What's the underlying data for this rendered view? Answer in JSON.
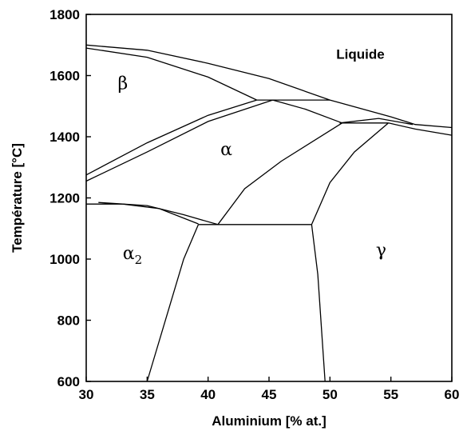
{
  "chart_data": {
    "type": "phase-diagram",
    "xlabel": "Aluminium [% at.]",
    "ylabel": "Température [°C]",
    "xlim": [
      30,
      60
    ],
    "ylim": [
      600,
      1800
    ],
    "x_ticks": [
      "30",
      "35",
      "40",
      "45",
      "50",
      "55",
      "60"
    ],
    "y_ticks": [
      "600",
      "800",
      "1000",
      "1200",
      "1400",
      "1600",
      "1800"
    ],
    "grid": false,
    "phase_labels": [
      {
        "text": "Liquide",
        "x": 52.5,
        "y": 1655,
        "style": "bold"
      },
      {
        "text": "β",
        "x": 33.0,
        "y": 1555,
        "style": "greek"
      },
      {
        "text": "α",
        "x": 41.5,
        "y": 1340,
        "style": "greek"
      },
      {
        "text": "α",
        "sub": "2",
        "x": 33.8,
        "y": 1000,
        "style": "greek"
      },
      {
        "text": "γ",
        "x": 54.2,
        "y": 1010,
        "style": "greek"
      }
    ],
    "boundaries": [
      {
        "name": "liquidus",
        "points": [
          [
            30,
            1700
          ],
          [
            35,
            1683
          ],
          [
            40,
            1640
          ],
          [
            45,
            1590
          ],
          [
            50,
            1520
          ],
          [
            55,
            1465
          ],
          [
            57,
            1440
          ],
          [
            60,
            1430
          ]
        ]
      },
      {
        "name": "solidus-beta",
        "points": [
          [
            30,
            1690
          ],
          [
            35,
            1660
          ],
          [
            40,
            1595
          ],
          [
            44,
            1520
          ]
        ]
      },
      {
        "name": "peritectic-1520",
        "points": [
          [
            44,
            1520
          ],
          [
            50,
            1520
          ]
        ]
      },
      {
        "name": "beta-alpha-upper",
        "points": [
          [
            30,
            1275
          ],
          [
            35,
            1380
          ],
          [
            40,
            1470
          ],
          [
            44,
            1520
          ]
        ]
      },
      {
        "name": "beta-alpha-lower",
        "points": [
          [
            30,
            1255
          ],
          [
            35,
            1350
          ],
          [
            40,
            1450
          ],
          [
            45.3,
            1520
          ]
        ]
      },
      {
        "name": "alpha-peritectic-lower",
        "points": [
          [
            45.3,
            1520
          ],
          [
            48,
            1490
          ],
          [
            51,
            1445
          ]
        ]
      },
      {
        "name": "peritectic-1445",
        "points": [
          [
            50.8,
            1445
          ],
          [
            54.8,
            1445
          ]
        ]
      },
      {
        "name": "solidus-alpha-upper",
        "points": [
          [
            50.8,
            1445
          ],
          [
            54,
            1460
          ],
          [
            56.8,
            1440
          ]
        ]
      },
      {
        "name": "liquidus-gamma",
        "points": [
          [
            54.8,
            1445
          ],
          [
            57,
            1425
          ],
          [
            60,
            1405
          ]
        ]
      },
      {
        "name": "alpha-alpha2-left",
        "points": [
          [
            30,
            1180
          ],
          [
            33,
            1180
          ],
          [
            36,
            1165
          ],
          [
            39.2,
            1115
          ]
        ]
      },
      {
        "name": "alpha-alpha2-inner",
        "points": [
          [
            31,
            1185
          ],
          [
            35,
            1175
          ],
          [
            38,
            1145
          ],
          [
            40.8,
            1113
          ]
        ]
      },
      {
        "name": "eutectoid-1113",
        "points": [
          [
            39.2,
            1113
          ],
          [
            48.5,
            1113
          ]
        ]
      },
      {
        "name": "alpha-gamma-lower",
        "points": [
          [
            40.8,
            1113
          ],
          [
            43,
            1230
          ],
          [
            46,
            1320
          ],
          [
            51,
            1445
          ]
        ]
      },
      {
        "name": "gamma-alpha-upper",
        "points": [
          [
            48.5,
            1113
          ],
          [
            50,
            1250
          ],
          [
            52,
            1350
          ],
          [
            54.8,
            1445
          ]
        ]
      },
      {
        "name": "alpha2-solvus",
        "points": [
          [
            39.2,
            1113
          ],
          [
            38,
            1000
          ],
          [
            35,
            600
          ]
        ]
      },
      {
        "name": "gamma-solvus",
        "points": [
          [
            48.5,
            1113
          ],
          [
            49,
            950
          ],
          [
            49.6,
            600
          ]
        ]
      }
    ]
  }
}
